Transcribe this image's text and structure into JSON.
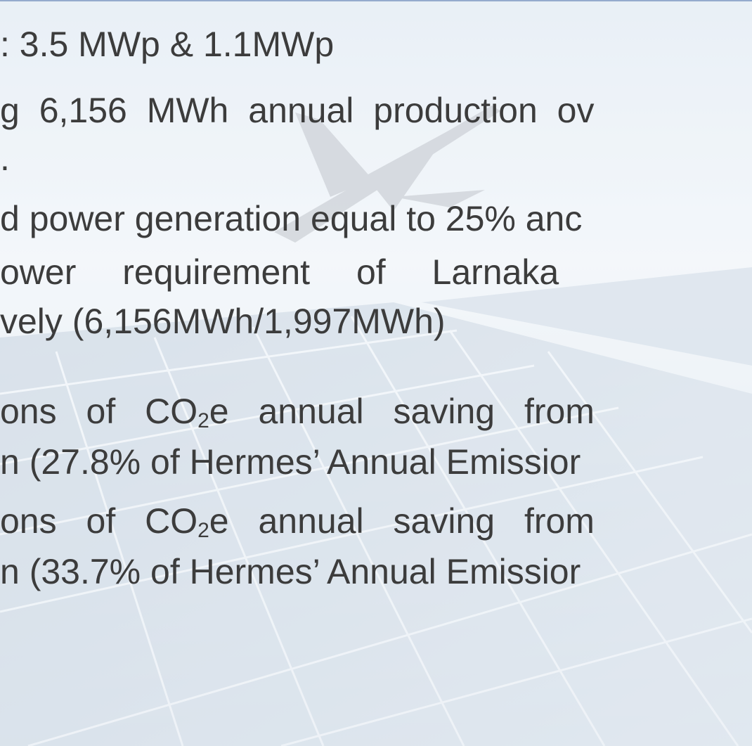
{
  "lines": [
    ": 3.5 MWp & 1.1MWp",
    "g 6,156 MWh annual production ov",
    ".",
    "d power generation equal to 25% anc",
    "ower requirement of Larnaka",
    "vely (6,156MWh/1,997MWh)",
    {
      "before": "ons of CO",
      "sub": "2",
      "after": "e annual saving from"
    },
    "n (27.8% of Hermes’ Annual Emissior",
    {
      "before": "ons of CO",
      "sub": "2",
      "after": "e annual saving from"
    },
    "n (33.7% of Hermes’ Annual Emissior"
  ]
}
